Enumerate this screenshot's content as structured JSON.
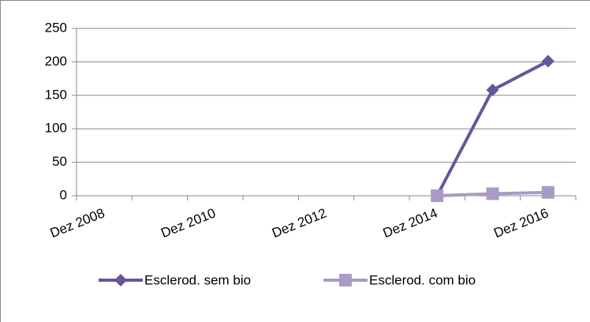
{
  "chart_data": {
    "type": "line",
    "categories": [
      "Dez 2008",
      null,
      "Dez 2010",
      null,
      "Dez 2012",
      null,
      "Dez 2014",
      null,
      "Dez 2016"
    ],
    "series": [
      {
        "name": "Esclerod. sem bio",
        "color": "#69559a",
        "marker": "diamond",
        "values": [
          null,
          null,
          null,
          null,
          null,
          null,
          0,
          158,
          201
        ]
      },
      {
        "name": "Esclerod. com bio",
        "color": "#a99bc6",
        "marker": "square",
        "values": [
          null,
          null,
          null,
          null,
          null,
          null,
          0,
          3,
          5
        ]
      }
    ],
    "ylim": [
      0,
      250
    ],
    "yticks": [
      0,
      50,
      100,
      150,
      200,
      250
    ],
    "grid": true,
    "legend": "bottom"
  }
}
